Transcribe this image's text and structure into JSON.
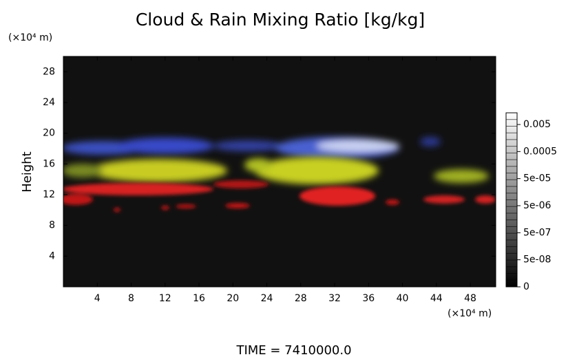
{
  "chart_data": {
    "type": "volume",
    "title": "Cloud & Rain Mixing Ratio [kg/kg]",
    "y_label": "Height",
    "y_unit": "(×10⁴ m)",
    "x_unit": "(×10⁴ m)",
    "xlim": [
      0,
      51
    ],
    "xticks": [
      4,
      8,
      12,
      16,
      20,
      24,
      28,
      32,
      36,
      40,
      44,
      48
    ],
    "ylim": [
      0,
      30
    ],
    "yticks": [
      4,
      8,
      12,
      16,
      20,
      24,
      28
    ],
    "colorbar_ticks": [
      0,
      {
        "value": 5e-08,
        "label": "5e-08"
      },
      {
        "value": 5e-07,
        "label": "5e-07"
      },
      {
        "value": 5e-06,
        "label": "5e-06"
      },
      {
        "value": 5e-05,
        "label": "5e-05"
      },
      0.0005,
      0.005
    ],
    "footer": "TIME = 7410000.0"
  }
}
